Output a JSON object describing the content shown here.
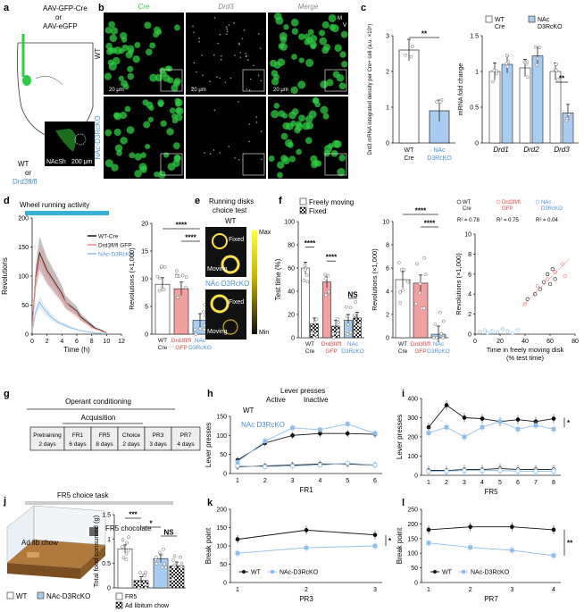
{
  "colors": {
    "wt": "#111111",
    "ko": "#8fbfe8",
    "gfp": "#ef8a8a",
    "cre": "#2ecc40",
    "dark": "#0b1a0b",
    "bar_ko": "#a9cdf0",
    "bar_gfp": "#f2a0a0"
  },
  "panels": {
    "a": {
      "label": "a",
      "virus1": "AAV-GFP-Cre",
      "or1": "or",
      "virus2": "AAV-eGFP",
      "geno1": "WT",
      "or2": "or",
      "geno2": "Drd3fl/fl",
      "region": "NAcSh",
      "scale": "200 μm"
    },
    "b": {
      "label": "b",
      "cols": [
        "Cre",
        "Drd3",
        "Merge"
      ],
      "rows": [
        "WT",
        "NAc-D3RcKO"
      ],
      "scale": "20 μm",
      "dir_m": "M",
      "dir_v": "V"
    },
    "c": {
      "label": "c"
    },
    "d": {
      "label": "d",
      "title": "Wheel running activity",
      "xlabel": "Time (h)",
      "ylabel": "Revolutions",
      "legend": [
        "WT-Cre",
        "Drd3fl/fl GFP",
        "NAc-D3RcKO"
      ]
    },
    "e": {
      "label": "e",
      "title": "Running disks",
      "subtitle": "choice test",
      "wt": "WT",
      "ko": "NAc-D3RcKO",
      "fixed": "Fixed",
      "moving": "Moving",
      "max": "Max",
      "min": "Min"
    },
    "f": {
      "label": "f",
      "legend": [
        "Freely moving",
        "Fixed"
      ]
    },
    "g": {
      "label": "g",
      "title": "Operant conditioning",
      "subtitle": "Acquisition",
      "stages": [
        {
          "name": "Pretraining",
          "dur": "2 days"
        },
        {
          "name": "FR1",
          "dur": "6 days"
        },
        {
          "name": "FR5",
          "dur": "8 days"
        },
        {
          "name": "Choice",
          "dur": "2 days"
        },
        {
          "name": "PR3",
          "dur": "3 days"
        },
        {
          "name": "PR7",
          "dur": "4 days"
        }
      ]
    },
    "h": {
      "label": "h",
      "title": "Lever presses",
      "active": "Active",
      "inactive": "Inactive",
      "wt": "WT",
      "ko": "NAc D3RcKO"
    },
    "i": {
      "label": "i"
    },
    "j": {
      "label": "j",
      "title": "FR5 choice task",
      "chow": "Ad lib chow",
      "choc": "FR5 chocolate",
      "wt": "WT",
      "ko": "NAc-D3RcKO",
      "leg1": "FR5",
      "leg2": "Ad libitum chow"
    },
    "k": {
      "label": "k"
    },
    "l": {
      "label": "l"
    }
  },
  "chart_data": [
    {
      "id": "c1",
      "type": "bar",
      "ylabel": "Drd3 mRNA integrated density per Cre+ cell (a.u. ×10⁵)",
      "categories": [
        "WT Cre",
        "NAc D3RcKO"
      ],
      "values": [
        2.6,
        0.9
      ],
      "ylim": [
        0,
        3
      ],
      "yticks": [
        0,
        1,
        2,
        3
      ],
      "sig": "**"
    },
    {
      "id": "c2",
      "type": "bar",
      "ylabel": "mRNA fold change",
      "categories": [
        "Drd1",
        "Drd2",
        "Drd3"
      ],
      "series": [
        {
          "name": "WT Cre",
          "values": [
            1.0,
            1.05,
            1.0
          ]
        },
        {
          "name": "NAc D3RcKO",
          "values": [
            1.1,
            1.22,
            0.42
          ]
        }
      ],
      "ylim": [
        0,
        1.5
      ],
      "yticks": [
        0,
        0.5,
        1.0,
        1.5
      ],
      "sig": "**"
    },
    {
      "id": "d1",
      "type": "line",
      "xlabel": "Time (h)",
      "ylabel": "Revolutions",
      "xlim": [
        0,
        12
      ],
      "ylim": [
        0,
        200
      ],
      "yticks": [
        0,
        50,
        100,
        150,
        200
      ],
      "xticks": [
        0,
        2,
        4,
        6,
        8,
        10,
        12
      ],
      "series": [
        {
          "name": "WT-Cre",
          "x": [
            0,
            0.5,
            1,
            1.5,
            2,
            2.5,
            3,
            3.5,
            4,
            4.5,
            5,
            5.5,
            6,
            6.5,
            7,
            7.5,
            8,
            8.5,
            9,
            9.5,
            10
          ],
          "values": [
            10,
            100,
            140,
            125,
            110,
            100,
            90,
            80,
            70,
            55,
            50,
            45,
            40,
            30,
            25,
            20,
            15,
            10,
            8,
            5,
            2
          ]
        },
        {
          "name": "Drd3fl/fl GFP",
          "x": [
            0,
            0.5,
            1,
            1.5,
            2,
            2.5,
            3,
            3.5,
            4,
            4.5,
            5,
            5.5,
            6,
            6.5,
            7,
            7.5,
            8,
            8.5,
            9,
            9.5,
            10
          ],
          "values": [
            10,
            95,
            130,
            120,
            105,
            95,
            85,
            75,
            65,
            55,
            48,
            40,
            35,
            28,
            22,
            18,
            12,
            9,
            7,
            4,
            2
          ]
        },
        {
          "name": "NAc-D3RcKO",
          "x": [
            0,
            0.5,
            1,
            1.5,
            2,
            2.5,
            3,
            3.5,
            4,
            4.5,
            5,
            5.5,
            6,
            6.5,
            7,
            7.5,
            8,
            8.5,
            9,
            9.5,
            10
          ],
          "values": [
            5,
            40,
            55,
            45,
            38,
            30,
            25,
            20,
            18,
            15,
            12,
            10,
            8,
            6,
            5,
            4,
            3,
            2,
            2,
            1,
            1
          ]
        }
      ]
    },
    {
      "id": "d2",
      "type": "bar",
      "ylabel": "Revolutions (×1,000)",
      "categories": [
        "WT Cre",
        "Drd3fl/fl GFP",
        "NAc D3RcKO"
      ],
      "values": [
        9.0,
        8.2,
        2.5
      ],
      "ylim": [
        0,
        20
      ],
      "yticks": [
        0,
        5,
        10,
        15,
        20
      ],
      "sig": [
        "****",
        "****"
      ]
    },
    {
      "id": "f1",
      "type": "bar",
      "ylabel": "Test time (%)",
      "categories": [
        "WT Cre",
        "Drd3fl/fl GFP",
        "NAc D3RcKO"
      ],
      "series": [
        {
          "name": "Freely moving",
          "values": [
            60,
            48,
            15
          ]
        },
        {
          "name": "Fixed",
          "values": [
            12,
            10,
            17
          ]
        }
      ],
      "ylim": [
        0,
        100
      ],
      "yticks": [
        0,
        20,
        40,
        60,
        80,
        100
      ],
      "sig": [
        "****",
        "****",
        "NS"
      ]
    },
    {
      "id": "f2",
      "type": "bar",
      "ylabel": "Revolutions (×1,000)",
      "categories": [
        "WT Cre",
        "Drd3fl/fl GFP",
        "NAc D3RcKO"
      ],
      "values": [
        5.0,
        4.7,
        0.3
      ],
      "ylim": [
        0,
        10
      ],
      "yticks": [
        0,
        2,
        4,
        6,
        8,
        10
      ],
      "sig": [
        "****",
        "****"
      ]
    },
    {
      "id": "f3",
      "type": "scatter",
      "xlabel": "Time in freely moving disk (% test time)",
      "ylabel": "Revolutions (×1,000)",
      "xlim": [
        0,
        80
      ],
      "ylim": [
        0,
        10
      ],
      "xticks": [
        0,
        20,
        40,
        60,
        80
      ],
      "yticks": [
        0,
        2,
        4,
        6,
        8,
        10
      ],
      "series": [
        {
          "name": "WT Cre",
          "r2": "R² = 0.78"
        },
        {
          "name": "Drd3fl/fl GFP",
          "r2": "R² = 0.75"
        },
        {
          "name": "NAc D3RcKO",
          "r2": "R² = 0.04"
        }
      ]
    },
    {
      "id": "h",
      "type": "line",
      "xlabel": "FR1",
      "ylabel": "Lever presses",
      "x": [
        1,
        2,
        3,
        4,
        5,
        6
      ],
      "ylim": [
        0,
        150
      ],
      "yticks": [
        0,
        50,
        100,
        150
      ],
      "series": [
        {
          "name": "WT Active",
          "values": [
            35,
            80,
            100,
            105,
            105,
            103
          ]
        },
        {
          "name": "NAc D3RcKO Active",
          "values": [
            30,
            85,
            120,
            115,
            130,
            105
          ]
        },
        {
          "name": "WT Inactive",
          "values": [
            18,
            20,
            22,
            25,
            25,
            22
          ]
        },
        {
          "name": "NAc D3RcKO Inactive",
          "values": [
            20,
            18,
            20,
            22,
            27,
            22
          ]
        }
      ]
    },
    {
      "id": "i",
      "type": "line",
      "xlabel": "FR5",
      "ylabel": "Lever presses",
      "x": [
        1,
        2,
        3,
        4,
        5,
        6,
        7,
        8
      ],
      "ylim": [
        0,
        400
      ],
      "yticks": [
        0,
        100,
        200,
        300,
        400
      ],
      "sig": "*",
      "series": [
        {
          "name": "WT Active",
          "values": [
            250,
            365,
            300,
            295,
            280,
            290,
            280,
            295
          ]
        },
        {
          "name": "NAc D3RcKO Active",
          "values": [
            220,
            250,
            200,
            250,
            280,
            240,
            260,
            240
          ]
        },
        {
          "name": "WT Inactive",
          "values": [
            25,
            25,
            30,
            30,
            35,
            30,
            30,
            30
          ]
        },
        {
          "name": "NAc D3RcKO Inactive",
          "values": [
            20,
            22,
            25,
            25,
            25,
            22,
            20,
            22
          ]
        }
      ]
    },
    {
      "id": "j",
      "type": "bar",
      "ylabel": "Total food consumed (g)",
      "categories": [
        "WT",
        "NAc-D3RcKO"
      ],
      "series": [
        {
          "name": "FR5",
          "values": [
            0.8,
            0.6
          ]
        },
        {
          "name": "Ad libitum chow",
          "values": [
            0.15,
            0.45
          ]
        }
      ],
      "ylim": [
        0,
        1.5
      ],
      "yticks": [
        0,
        0.5,
        1.0,
        1.5
      ],
      "sig": [
        "***",
        "*",
        "NS"
      ]
    },
    {
      "id": "k",
      "type": "line",
      "xlabel": "PR3",
      "ylabel": "Break point",
      "x": [
        1,
        2,
        3
      ],
      "ylim": [
        0,
        200
      ],
      "yticks": [
        0,
        50,
        100,
        150,
        200
      ],
      "sig": "*",
      "series": [
        {
          "name": "WT",
          "values": [
            118,
            143,
            130
          ]
        },
        {
          "name": "NAc-D3RcKO",
          "values": [
            80,
            95,
            100
          ]
        }
      ]
    },
    {
      "id": "l",
      "type": "line",
      "xlabel": "PR7",
      "ylabel": "Break point",
      "x": [
        1,
        2,
        3,
        4
      ],
      "ylim": [
        0,
        250
      ],
      "yticks": [
        0,
        50,
        100,
        150,
        200,
        250
      ],
      "sig": "**",
      "series": [
        {
          "name": "WT",
          "values": [
            180,
            190,
            190,
            180
          ]
        },
        {
          "name": "NAc-D3RcKO",
          "values": [
            135,
            120,
            110,
            92
          ]
        }
      ]
    }
  ]
}
